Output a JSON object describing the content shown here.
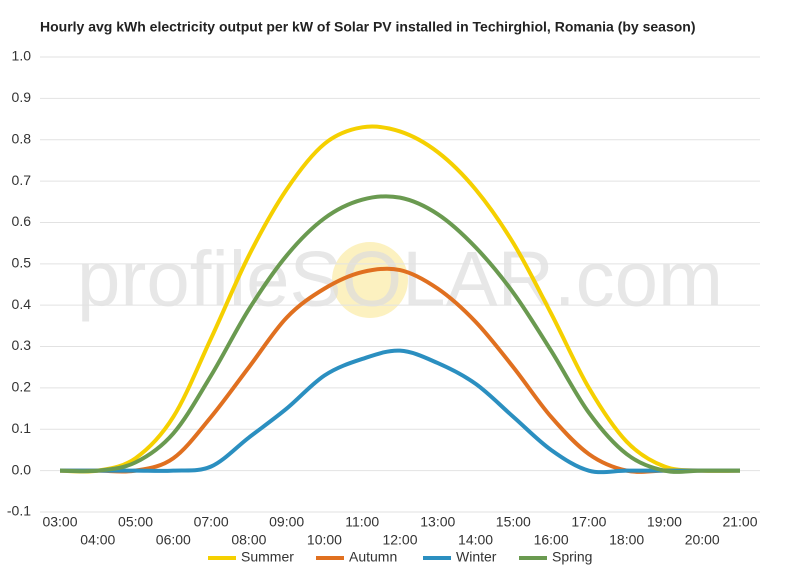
{
  "chart_data": {
    "type": "line",
    "title": "Hourly avg kWh electricity output per kW of Solar PV installed in Techirghiol, Romania (by season)",
    "watermark": "profileSOLAR.com",
    "categories": [
      "03:00",
      "04:00",
      "05:00",
      "06:00",
      "07:00",
      "08:00",
      "09:00",
      "10:00",
      "11:00",
      "12:00",
      "13:00",
      "14:00",
      "15:00",
      "16:00",
      "17:00",
      "18:00",
      "19:00",
      "20:00",
      "21:00"
    ],
    "series": [
      {
        "name": "Summer",
        "color": "#f5d000",
        "values": [
          0,
          0,
          0.03,
          0.13,
          0.32,
          0.52,
          0.68,
          0.79,
          0.83,
          0.82,
          0.77,
          0.68,
          0.55,
          0.38,
          0.2,
          0.07,
          0.01,
          0,
          0
        ]
      },
      {
        "name": "Autumn",
        "color": "#e07020",
        "values": [
          0,
          0,
          0,
          0.03,
          0.13,
          0.25,
          0.37,
          0.44,
          0.48,
          0.485,
          0.44,
          0.36,
          0.25,
          0.13,
          0.04,
          0,
          0,
          0,
          0
        ]
      },
      {
        "name": "Winter",
        "color": "#2b8fc0",
        "values": [
          0,
          0,
          0,
          0,
          0.01,
          0.08,
          0.15,
          0.23,
          0.27,
          0.29,
          0.26,
          0.21,
          0.13,
          0.05,
          0,
          0,
          0,
          0,
          0
        ]
      },
      {
        "name": "Spring",
        "color": "#6a9a50",
        "values": [
          0,
          0,
          0.02,
          0.09,
          0.23,
          0.39,
          0.52,
          0.61,
          0.655,
          0.66,
          0.62,
          0.54,
          0.43,
          0.29,
          0.14,
          0.04,
          0,
          0,
          0
        ]
      }
    ],
    "ylim": [
      -0.1,
      1.0
    ],
    "yticks": [
      -0.1,
      {
        "value": 0,
        "label": "0.0"
      },
      0.1,
      0.2,
      0.3,
      0.4,
      0.5,
      0.6,
      0.7,
      0.8,
      0.9,
      {
        "value": 1,
        "label": "1.0"
      }
    ],
    "grid": true,
    "legend": "bottom"
  }
}
